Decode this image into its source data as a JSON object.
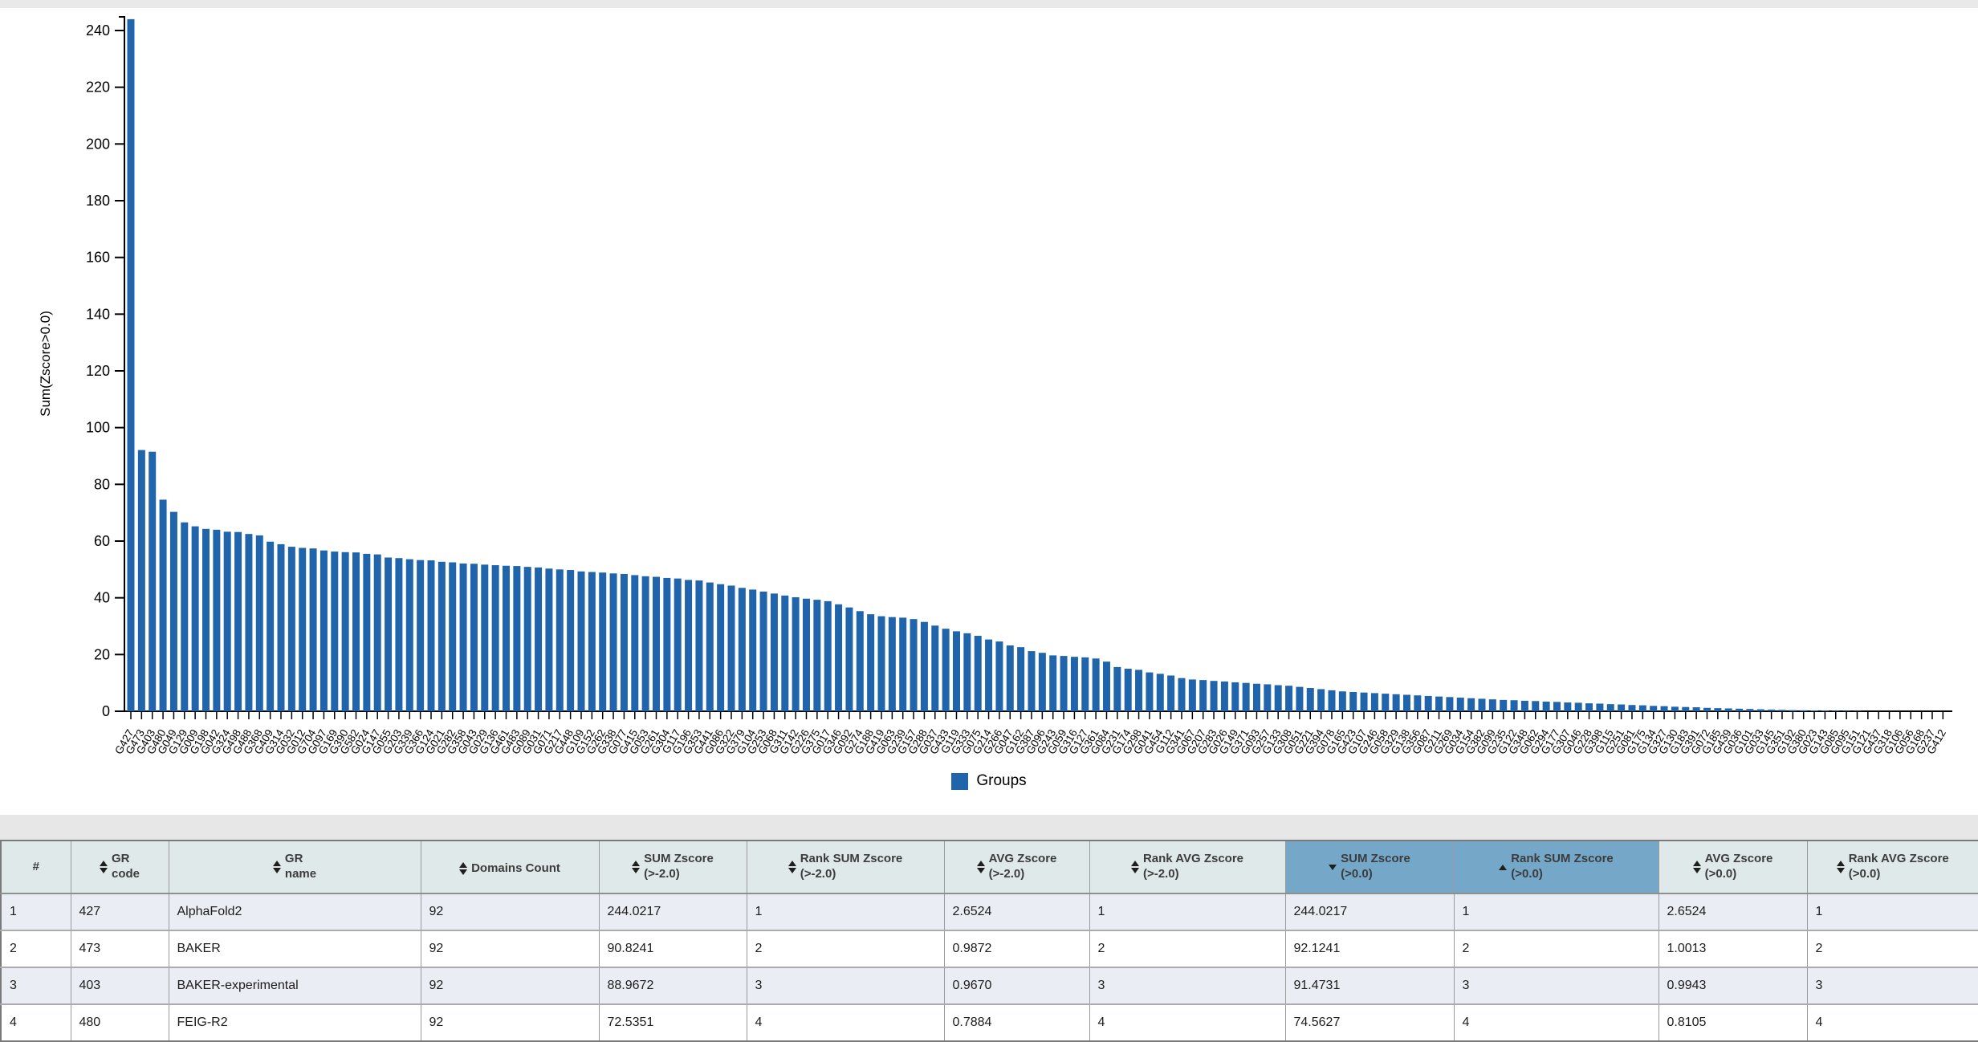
{
  "legend": {
    "label": "Groups"
  },
  "colors": {
    "bar": "#2065ab",
    "header_bg": "#dfe9e9",
    "header_highlight": "#74a7c8",
    "stripe": "#ebedf4"
  },
  "chart_data": [
    {
      "type": "bar",
      "title": "",
      "xlabel": "",
      "ylabel": "Sum(Zscore>0.0)",
      "ylim": [
        0,
        250
      ],
      "y_ticks": [
        0,
        20,
        40,
        60,
        80,
        100,
        120,
        140,
        160,
        180,
        200,
        220,
        240
      ],
      "grid": false,
      "legend_label": "Groups",
      "legend_position": "bottom-center",
      "sort": "descending by value",
      "categories": [
        "G427",
        "G473",
        "G403",
        "G480",
        "G049",
        "G129",
        "G009",
        "G198",
        "G042",
        "G324",
        "G498",
        "G488",
        "G368",
        "G409",
        "G314",
        "G032",
        "G012",
        "G704",
        "G097",
        "G169",
        "G390",
        "G582",
        "G024",
        "G147",
        "G055",
        "G203",
        "G339",
        "G366",
        "G124",
        "G021",
        "G282",
        "G358",
        "G043",
        "G029",
        "G136",
        "G461",
        "G483",
        "G089",
        "G031",
        "G071",
        "G217",
        "G448",
        "G109",
        "G152",
        "G262",
        "G338",
        "G077",
        "G415",
        "G053",
        "G261",
        "G304",
        "G117",
        "G196",
        "G353",
        "G441",
        "G086",
        "G322",
        "G379",
        "G104",
        "G253",
        "G068",
        "G311",
        "G142",
        "G226",
        "G375",
        "G017",
        "G346",
        "G092",
        "G274",
        "G188",
        "G419",
        "G063",
        "G239",
        "G157",
        "G288",
        "G037",
        "G433",
        "G119",
        "G333",
        "G075",
        "G214",
        "G266",
        "G047",
        "G162",
        "G387",
        "G096",
        "G243",
        "G059",
        "G316",
        "G127",
        "G361",
        "G084",
        "G231",
        "G174",
        "G298",
        "G041",
        "G454",
        "G112",
        "G341",
        "G067",
        "G207",
        "G283",
        "G026",
        "G149",
        "G371",
        "G093",
        "G257",
        "G133",
        "G308",
        "G051",
        "G221",
        "G394",
        "G078",
        "G165",
        "G423",
        "G107",
        "G246",
        "G058",
        "G329",
        "G138",
        "G356",
        "G087",
        "G211",
        "G269",
        "G034",
        "G154",
        "G382",
        "G099",
        "G235",
        "G122",
        "G348",
        "G062",
        "G294",
        "G177",
        "G307",
        "G046",
        "G228",
        "G398",
        "G115",
        "G251",
        "G081",
        "G175",
        "G134",
        "G327",
        "G130",
        "G183",
        "G391",
        "G072",
        "G185",
        "G439",
        "G036",
        "G101",
        "G033",
        "G145",
        "G351",
        "G192",
        "G380",
        "G023",
        "G143",
        "G085",
        "G095",
        "G151",
        "G121",
        "G437",
        "G318",
        "G106",
        "G056",
        "G168",
        "G237",
        "G412"
      ],
      "values": [
        244.0,
        92.1,
        91.5,
        74.6,
        70.3,
        66.6,
        65.2,
        64.3,
        64.0,
        63.3,
        63.2,
        62.5,
        62.0,
        59.8,
        58.9,
        58.0,
        57.6,
        57.4,
        56.7,
        56.3,
        56.1,
        56.0,
        55.5,
        55.3,
        54.2,
        54.0,
        53.6,
        53.3,
        53.2,
        52.7,
        52.5,
        52.1,
        52.0,
        51.7,
        51.5,
        51.3,
        51.2,
        50.9,
        50.7,
        50.3,
        50.0,
        49.8,
        49.3,
        49.1,
        48.9,
        48.6,
        48.4,
        48.0,
        47.6,
        47.4,
        47.0,
        46.8,
        46.3,
        46.1,
        45.4,
        44.8,
        44.3,
        43.5,
        42.9,
        42.2,
        41.5,
        40.8,
        40.2,
        39.7,
        39.3,
        38.8,
        37.7,
        36.6,
        35.3,
        34.2,
        33.5,
        33.2,
        33.0,
        32.5,
        31.5,
        30.2,
        29.1,
        28.2,
        27.5,
        26.6,
        25.3,
        24.6,
        23.2,
        22.6,
        21.2,
        20.6,
        19.7,
        19.5,
        19.2,
        19.0,
        18.6,
        17.5,
        15.6,
        15.0,
        14.6,
        13.7,
        13.2,
        12.6,
        11.7,
        11.2,
        11.0,
        10.7,
        10.5,
        10.2,
        10.0,
        9.7,
        9.5,
        9.2,
        9.0,
        8.6,
        8.2,
        7.8,
        7.4,
        7.0,
        6.8,
        6.6,
        6.4,
        6.2,
        6.0,
        5.8,
        5.6,
        5.4,
        5.2,
        5.0,
        4.8,
        4.6,
        4.4,
        4.2,
        4.0,
        3.9,
        3.7,
        3.6,
        3.4,
        3.3,
        3.1,
        3.0,
        2.8,
        2.7,
        2.5,
        2.4,
        2.2,
        2.1,
        1.9,
        1.8,
        1.6,
        1.5,
        1.4,
        1.2,
        1.1,
        1.0,
        0.9,
        0.8,
        0.7,
        0.6,
        0.5,
        0.4,
        0.35,
        0.3,
        0.25,
        0.2,
        0.15,
        0.12,
        0.1,
        0.08,
        0.06,
        0.05,
        0.04,
        0.03,
        0.02,
        0.0
      ]
    },
    {
      "type": "table",
      "columns": [
        {
          "lines": [
            "#"
          ],
          "sort": "none",
          "highlight": false
        },
        {
          "lines": [
            "GR",
            "code"
          ],
          "sort": "both",
          "highlight": false
        },
        {
          "lines": [
            "GR",
            "name"
          ],
          "sort": "both",
          "highlight": false
        },
        {
          "lines": [
            "Domains Count"
          ],
          "sort": "both",
          "highlight": false
        },
        {
          "lines": [
            "SUM Zscore",
            "(>-2.0)"
          ],
          "sort": "both",
          "highlight": false
        },
        {
          "lines": [
            "Rank SUM Zscore",
            "(>-2.0)"
          ],
          "sort": "both",
          "highlight": false
        },
        {
          "lines": [
            "AVG Zscore",
            "(>-2.0)"
          ],
          "sort": "both",
          "highlight": false
        },
        {
          "lines": [
            "Rank AVG Zscore",
            "(>-2.0)"
          ],
          "sort": "both",
          "highlight": false
        },
        {
          "lines": [
            "SUM Zscore",
            "(>0.0)"
          ],
          "sort": "desc",
          "highlight": true
        },
        {
          "lines": [
            "Rank SUM Zscore",
            "(>0.0)"
          ],
          "sort": "asc",
          "highlight": true
        },
        {
          "lines": [
            "AVG Zscore",
            "(>0.0)"
          ],
          "sort": "both",
          "highlight": false
        },
        {
          "lines": [
            "Rank AVG Zscore",
            "(>0.0)"
          ],
          "sort": "both",
          "highlight": false
        }
      ],
      "rows": [
        [
          "1",
          "427",
          "AlphaFold2",
          "92",
          "244.0217",
          "1",
          "2.6524",
          "1",
          "244.0217",
          "1",
          "2.6524",
          "1"
        ],
        [
          "2",
          "473",
          "BAKER",
          "92",
          "90.8241",
          "2",
          "0.9872",
          "2",
          "92.1241",
          "2",
          "1.0013",
          "2"
        ],
        [
          "3",
          "403",
          "BAKER-experimental",
          "92",
          "88.9672",
          "3",
          "0.9670",
          "3",
          "91.4731",
          "3",
          "0.9943",
          "3"
        ],
        [
          "4",
          "480",
          "FEIG-R2",
          "92",
          "72.5351",
          "4",
          "0.7884",
          "4",
          "74.5627",
          "4",
          "0.8105",
          "4"
        ]
      ]
    }
  ]
}
